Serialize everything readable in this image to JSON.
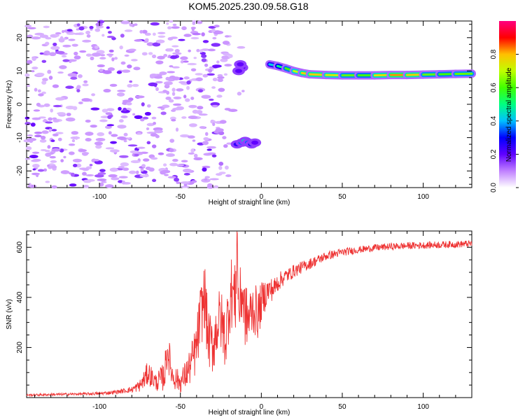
{
  "title": "KOM5.2025.230.09.58.G18",
  "chart_data": [
    {
      "type": "heatmap",
      "xlabel": "Height of straight line (km)",
      "ylabel": "Frequency (Hz)",
      "xlim": [
        -145,
        130
      ],
      "ylim": [
        -25,
        25
      ],
      "xticks": [
        -100,
        -50,
        0,
        50,
        100
      ],
      "yticks": [
        -20,
        -10,
        0,
        10,
        20
      ],
      "colorbar": {
        "label": "Normalized spectral amplitude",
        "range": [
          0,
          1
        ],
        "ticks": [
          0.0,
          0.2,
          0.4,
          0.6,
          0.8
        ],
        "tick_labels": [
          "0.0",
          "0.2",
          "0.4",
          "0.6",
          "0.8"
        ],
        "colors": [
          "#ffffff",
          "#c080ff",
          "#6000ff",
          "#0000ff",
          "#00c0ff",
          "#00ff80",
          "#40ff00",
          "#c0ff00",
          "#ffc000",
          "#ff0000",
          "#ff0080"
        ]
      },
      "noise_region_x": [
        -145,
        -20
      ],
      "features": [
        {
          "label": "track",
          "x": [
            5,
            10,
            15,
            20,
            25,
            30,
            40,
            50,
            60,
            70,
            80,
            90,
            100,
            110,
            120,
            130
          ],
          "y": [
            12,
            11.5,
            10.8,
            10.0,
            9.4,
            9.0,
            8.8,
            8.7,
            8.7,
            8.7,
            8.8,
            8.8,
            8.9,
            9.0,
            9.1,
            9.2
          ],
          "amplitude": [
            0.4,
            0.45,
            0.55,
            0.65,
            0.75,
            0.8,
            0.75,
            0.7,
            0.55,
            0.65,
            0.85,
            0.8,
            0.75,
            0.5,
            0.7,
            0.55
          ]
        },
        {
          "label": "blob-upper",
          "x": [
            -12,
            -13,
            -14
          ],
          "y": [
            11,
            12,
            10
          ],
          "amplitude": [
            0.2,
            0.2,
            0.2
          ]
        },
        {
          "label": "blob-lower",
          "x": [
            -15,
            -12,
            -10,
            -8,
            -6,
            -4
          ],
          "y": [
            -12,
            -11.5,
            -11,
            -11.5,
            -12,
            -11.5
          ],
          "amplitude": [
            0.25,
            0.35,
            0.45,
            0.35,
            0.3,
            0.2
          ]
        }
      ]
    },
    {
      "type": "line",
      "xlabel": "Height of straight line (km)",
      "ylabel": "SNR (v/v)",
      "xlim": [
        -145,
        130
      ],
      "ylim": [
        0,
        665
      ],
      "xticks": [
        -100,
        -50,
        0,
        50,
        100
      ],
      "yticks": [
        200,
        400,
        600
      ],
      "color": "#ee3333",
      "x": [
        -145,
        -130,
        -115,
        -100,
        -90,
        -80,
        -75,
        -72,
        -70,
        -65,
        -60,
        -58,
        -55,
        -50,
        -45,
        -42,
        -40,
        -38,
        -35,
        -33,
        -30,
        -27,
        -25,
        -22,
        -20,
        -18,
        -16,
        -15,
        -14,
        -12,
        -10,
        -8,
        -5,
        -2,
        0,
        3,
        5,
        8,
        10,
        12,
        15,
        18,
        20,
        25,
        30,
        35,
        40,
        50,
        60,
        70,
        80,
        90,
        100,
        110,
        120,
        130
      ],
      "y": [
        10,
        12,
        14,
        16,
        22,
        32,
        48,
        75,
        100,
        60,
        85,
        195,
        90,
        60,
        110,
        160,
        200,
        305,
        410,
        240,
        200,
        300,
        310,
        230,
        380,
        430,
        380,
        660,
        340,
        430,
        330,
        310,
        360,
        330,
        380,
        420,
        430,
        435,
        460,
        470,
        485,
        495,
        505,
        520,
        535,
        550,
        565,
        580,
        590,
        598,
        603,
        606,
        608,
        610,
        612,
        614
      ],
      "noise_amplitude": [
        4,
        5,
        5,
        6,
        8,
        12,
        25,
        40,
        50,
        35,
        60,
        80,
        55,
        40,
        70,
        90,
        110,
        130,
        140,
        120,
        110,
        130,
        130,
        120,
        150,
        150,
        140,
        120,
        130,
        140,
        130,
        120,
        110,
        100,
        80,
        60,
        50,
        45,
        40,
        35,
        30,
        28,
        26,
        24,
        22,
        20,
        18,
        16,
        14,
        14,
        14,
        14,
        14,
        14,
        14,
        14
      ]
    }
  ]
}
